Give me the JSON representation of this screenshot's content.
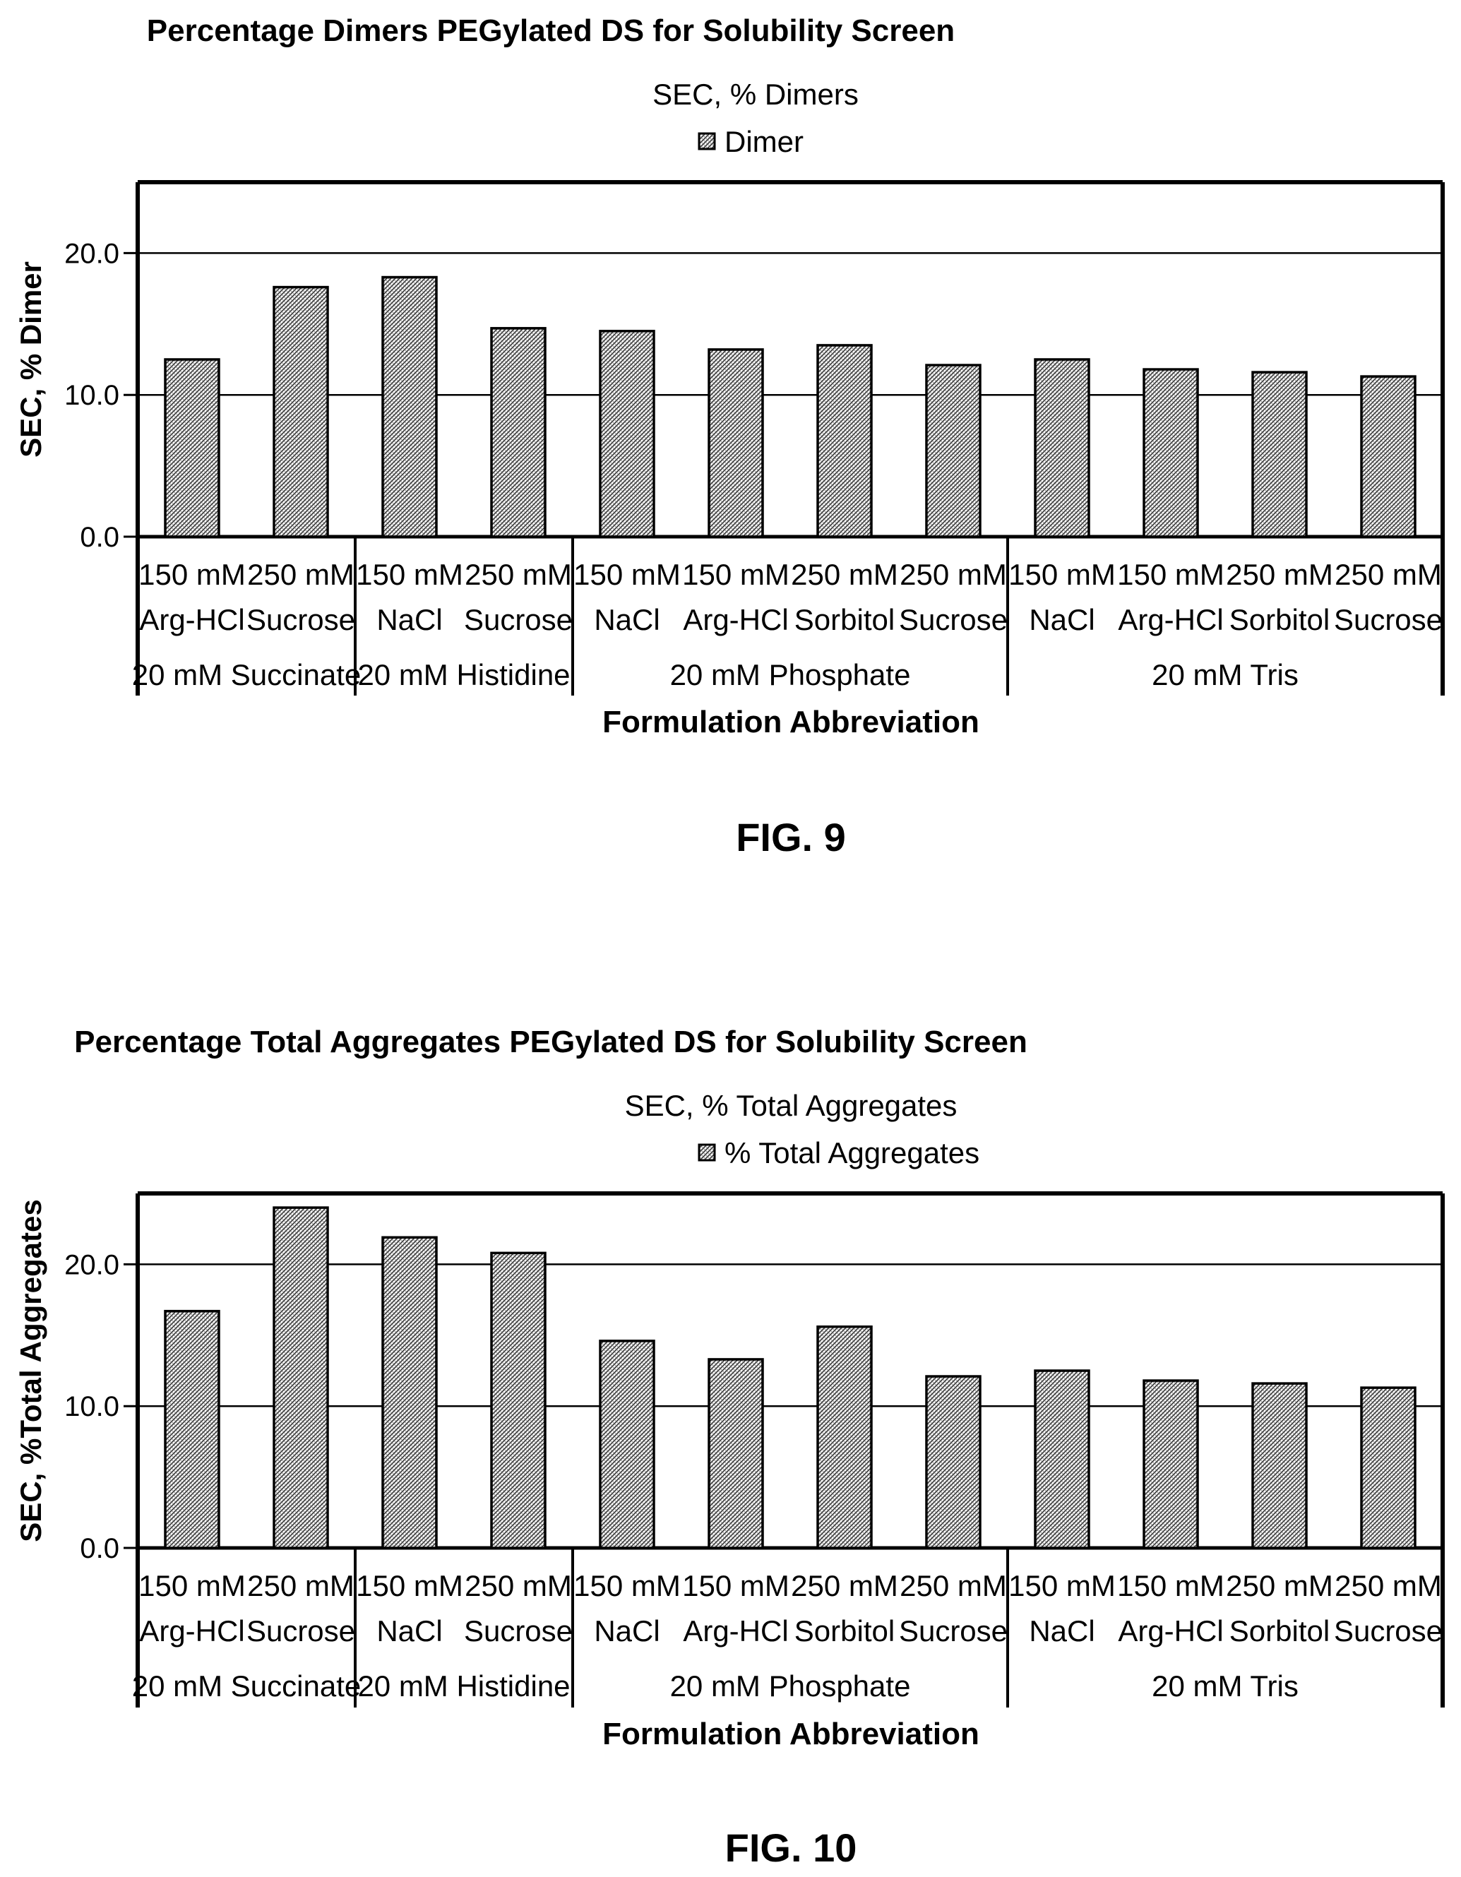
{
  "charts": [
    {
      "fig_label": "FIG. 9",
      "chart_data": {
        "type": "bar",
        "title": "Percentage Dimers PEGylated DS for Solubility Screen",
        "subtitle": "SEC, % Dimers",
        "legend": [
          "Dimer"
        ],
        "legend_position": "top-center",
        "ylabel": "SEC, % Dimer",
        "xlabel": "Formulation Abbreviation",
        "ylim": [
          0,
          25
        ],
        "yticks": [
          "0.0",
          "10.0",
          "20.0"
        ],
        "ytick_values": [
          0,
          10,
          20
        ],
        "grid": true,
        "categories": [
          [
            "150 mM",
            "Arg-HCl"
          ],
          [
            "250 mM",
            "Sucrose"
          ],
          [
            "150 mM",
            "NaCl"
          ],
          [
            "250 mM",
            "Sucrose"
          ],
          [
            "150 mM",
            "NaCl"
          ],
          [
            "150 mM",
            "Arg-HCl"
          ],
          [
            "250 mM",
            "Sorbitol"
          ],
          [
            "250 mM",
            "Sucrose"
          ],
          [
            "150 mM",
            "NaCl"
          ],
          [
            "150 mM",
            "Arg-HCl"
          ],
          [
            "250 mM",
            "Sorbitol"
          ],
          [
            "250 mM",
            "Sucrose"
          ]
        ],
        "groups": [
          {
            "label": "20 mM Succinate",
            "count": 2
          },
          {
            "label": "20 mM Histidine",
            "count": 2
          },
          {
            "label": "20 mM Phosphate",
            "count": 4
          },
          {
            "label": "20 mM Tris",
            "count": 4
          }
        ],
        "series": [
          {
            "name": "Dimer",
            "values": [
              12.5,
              17.6,
              18.3,
              14.7,
              14.5,
              13.2,
              13.5,
              12.1,
              12.5,
              11.8,
              11.6,
              11.3
            ]
          }
        ]
      }
    },
    {
      "fig_label": "FIG. 10",
      "chart_data": {
        "type": "bar",
        "title": "Percentage Total Aggregates PEGylated DS for Solubility Screen",
        "subtitle": "SEC, % Total Aggregates",
        "legend": [
          "% Total Aggregates"
        ],
        "legend_position": "top-center",
        "ylabel": "SEC, %Total Aggregates",
        "xlabel": "Formulation Abbreviation",
        "ylim": [
          0,
          25
        ],
        "yticks": [
          "0.0",
          "10.0",
          "20.0"
        ],
        "ytick_values": [
          0,
          10,
          20
        ],
        "grid": true,
        "categories": [
          [
            "150 mM",
            "Arg-HCl"
          ],
          [
            "250 mM",
            "Sucrose"
          ],
          [
            "150 mM",
            "NaCl"
          ],
          [
            "250 mM",
            "Sucrose"
          ],
          [
            "150 mM",
            "NaCl"
          ],
          [
            "150 mM",
            "Arg-HCl"
          ],
          [
            "250 mM",
            "Sorbitol"
          ],
          [
            "250 mM",
            "Sucrose"
          ],
          [
            "150 mM",
            "NaCl"
          ],
          [
            "150 mM",
            "Arg-HCl"
          ],
          [
            "250 mM",
            "Sorbitol"
          ],
          [
            "250 mM",
            "Sucrose"
          ]
        ],
        "groups": [
          {
            "label": "20 mM Succinate",
            "count": 2
          },
          {
            "label": "20 mM Histidine",
            "count": 2
          },
          {
            "label": "20 mM Phosphate",
            "count": 4
          },
          {
            "label": "20 mM Tris",
            "count": 4
          }
        ],
        "series": [
          {
            "name": "% Total Aggregates",
            "values": [
              16.7,
              24.0,
              21.9,
              20.8,
              14.6,
              13.3,
              15.6,
              12.1,
              12.5,
              11.8,
              11.6,
              11.3
            ]
          }
        ]
      }
    }
  ]
}
